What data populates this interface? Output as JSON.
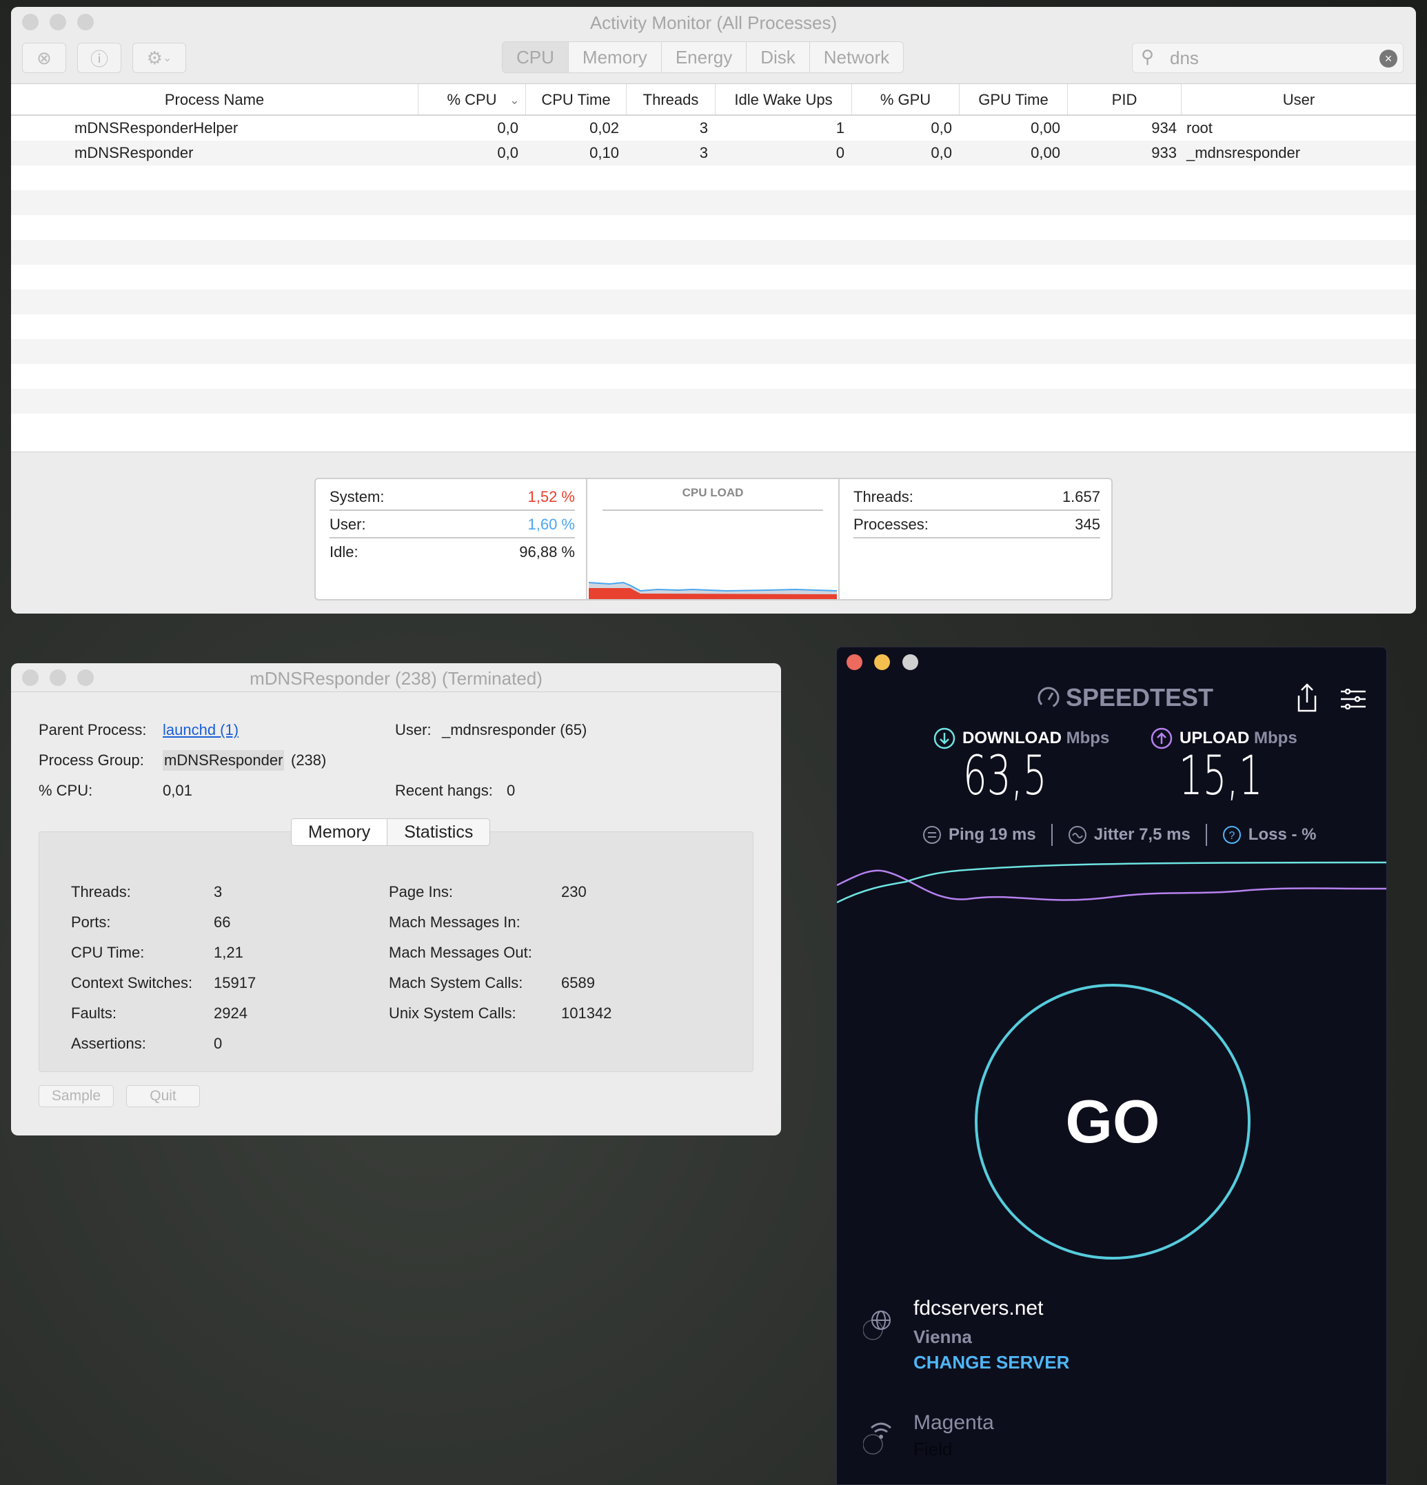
{
  "activity_monitor": {
    "title": "Activity Monitor (All Processes)",
    "tabs": [
      "CPU",
      "Memory",
      "Energy",
      "Disk",
      "Network"
    ],
    "active_tab": "CPU",
    "search": {
      "value": "dns"
    },
    "columns": [
      "Process Name",
      "% CPU",
      "CPU Time",
      "Threads",
      "Idle Wake Ups",
      "% GPU",
      "GPU Time",
      "PID",
      "User"
    ],
    "sort_column": "% CPU",
    "rows": [
      [
        "mDNSResponderHelper",
        "0,0",
        "0,02",
        "3",
        "1",
        "0,0",
        "0,00",
        "934",
        "root"
      ],
      [
        "mDNSResponder",
        "0,0",
        "0,10",
        "3",
        "0",
        "0,0",
        "0,00",
        "933",
        "_mdnsresponder"
      ]
    ],
    "summary": {
      "system_label": "System:",
      "system": "1,52 %",
      "user_label": "User:",
      "user": "1,60 %",
      "idle_label": "Idle:",
      "idle": "96,88 %",
      "chart_title": "CPU LOAD",
      "threads_label": "Threads:",
      "threads": "1.657",
      "processes_label": "Processes:",
      "processes": "345"
    },
    "colors": {
      "system": "#e8412f",
      "user": "#4aa6f0"
    }
  },
  "info_window": {
    "title": "mDNSResponder (238) (Terminated)",
    "parent_label": "Parent Process:",
    "parent": "launchd (1)",
    "user_label": "User:",
    "user": "_mdnsresponder (65)",
    "group_label": "Process Group:",
    "group": "mDNSResponder",
    "group_suffix": "(238)",
    "cpu_label": "% CPU:",
    "cpu": "0,01",
    "hangs_label": "Recent hangs:",
    "hangs": "0",
    "tabs": [
      "Memory",
      "Statistics"
    ],
    "stats_left": [
      [
        "Threads:",
        "3"
      ],
      [
        "Ports:",
        "66"
      ],
      [
        "CPU Time:",
        "1,21"
      ],
      [
        "Context Switches:",
        "15917"
      ],
      [
        "Faults:",
        "2924"
      ],
      [
        "Assertions:",
        "0"
      ]
    ],
    "stats_right": [
      [
        "Page Ins:",
        "230"
      ],
      [
        "Mach Messages In:",
        ""
      ],
      [
        "Mach Messages Out:",
        ""
      ],
      [
        "Mach System Calls:",
        "6589"
      ],
      [
        "Unix System Calls:",
        "101342"
      ]
    ],
    "buttons": {
      "sample": "Sample",
      "quit": "Quit"
    }
  },
  "speedtest": {
    "logo": "SPEEDTEST",
    "download_label": "DOWNLOAD",
    "upload_label": "UPLOAD",
    "unit": "Mbps",
    "download": "63,5",
    "upload": "15,1",
    "ping": "Ping 19 ms",
    "jitter": "Jitter 7,5 ms",
    "loss": "Loss - %",
    "go": "GO",
    "server_host": "fdcservers.net",
    "server_city": "Vienna",
    "change_server": "CHANGE SERVER",
    "isp": "Magenta",
    "isp_sub": "Field",
    "colors": {
      "download": "#6de4e1",
      "upload": "#b682f0",
      "link": "#4fb6f5"
    }
  }
}
